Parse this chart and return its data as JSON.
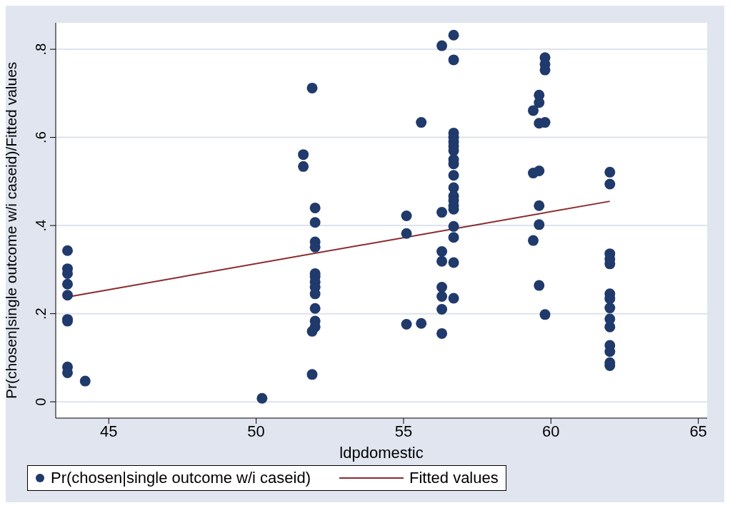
{
  "chart_data": {
    "type": "scatter",
    "xlabel": "ldpdomestic",
    "ylabel": "Pr(chosen|single outcome w/i caseid)/Fitted values",
    "xlim": [
      43.2,
      65.3
    ],
    "ylim": [
      -0.037,
      0.86
    ],
    "xticks": [
      45,
      50,
      55,
      60,
      65
    ],
    "yticks": [
      {
        "value": 0,
        "label": "0"
      },
      {
        "value": 0.2,
        "label": ".2"
      },
      {
        "value": 0.4,
        "label": ".4"
      },
      {
        "value": 0.6,
        "label": ".6"
      },
      {
        "value": 0.8,
        "label": ".8"
      }
    ],
    "grid": "y",
    "legend": "bottom",
    "marker": "circle",
    "series": [
      {
        "name": "Pr(chosen|single outcome w/i caseid)",
        "type": "scatter",
        "color": "#1f3a6b",
        "x": [
          43.6,
          43.6,
          43.6,
          43.6,
          43.6,
          43.6,
          43.6,
          43.6,
          43.6,
          44.2,
          50.2,
          51.6,
          51.6,
          51.9,
          52,
          52,
          52,
          52,
          52,
          52,
          52,
          52,
          52,
          52,
          52,
          52,
          51.9,
          51.9,
          55.1,
          55.1,
          55.1,
          55.6,
          55.6,
          56.3,
          56.3,
          56.3,
          56.3,
          56.3,
          56.3,
          56.3,
          56.3,
          56.7,
          56.7,
          56.7,
          56.7,
          56.7,
          56.7,
          56.7,
          56.7,
          56.7,
          56.7,
          56.7,
          56.7,
          56.7,
          56.7,
          56.7,
          56.7,
          56.7,
          56.7,
          56.7,
          59.8,
          59.8,
          59.8,
          59.6,
          59.6,
          59.4,
          59.6,
          59.8,
          59.4,
          59.6,
          59.6,
          59.6,
          59.4,
          59.6,
          59.8,
          62,
          62,
          62,
          62,
          62,
          62,
          62,
          62,
          62,
          62,
          62,
          62,
          62,
          62
        ],
        "values": [
          0.343,
          0.302,
          0.291,
          0.267,
          0.242,
          0.187,
          0.183,
          0.079,
          0.066,
          0.047,
          0.008,
          0.561,
          0.534,
          0.712,
          0.44,
          0.407,
          0.363,
          0.351,
          0.291,
          0.284,
          0.272,
          0.26,
          0.245,
          0.212,
          0.183,
          0.17,
          0.16,
          0.062,
          0.422,
          0.382,
          0.176,
          0.634,
          0.178,
          0.808,
          0.43,
          0.341,
          0.319,
          0.26,
          0.239,
          0.21,
          0.155,
          0.832,
          0.776,
          0.61,
          0.6,
          0.59,
          0.58,
          0.57,
          0.55,
          0.54,
          0.514,
          0.486,
          0.467,
          0.457,
          0.445,
          0.437,
          0.398,
          0.373,
          0.316,
          0.235,
          0.781,
          0.766,
          0.753,
          0.696,
          0.679,
          0.661,
          0.632,
          0.634,
          0.519,
          0.524,
          0.445,
          0.402,
          0.366,
          0.264,
          0.198,
          0.521,
          0.494,
          0.336,
          0.324,
          0.313,
          0.245,
          0.234,
          0.213,
          0.188,
          0.17,
          0.128,
          0.114,
          0.089,
          0.082
        ]
      },
      {
        "name": "Fitted values",
        "type": "line",
        "color": "#8b2a2e",
        "marker": "none",
        "line_style": "solid",
        "x": [
          43.6,
          62
        ],
        "values": [
          0.238,
          0.455
        ]
      }
    ]
  }
}
